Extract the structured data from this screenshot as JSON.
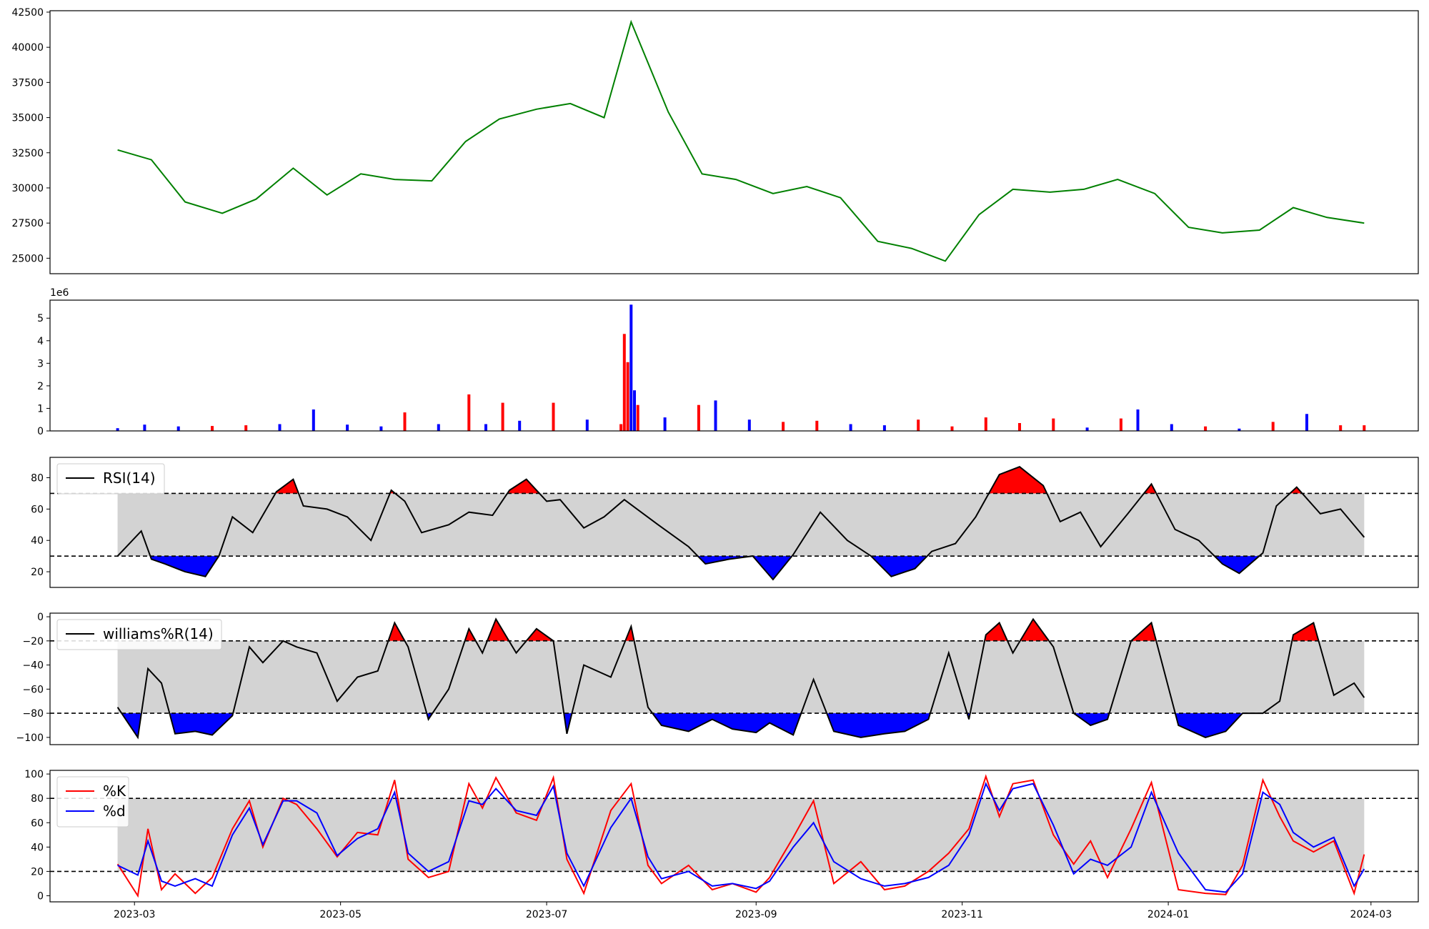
{
  "chart_data": [
    {
      "type": "line",
      "panel": "price",
      "ylim": [
        23900,
        42600
      ],
      "y_ticks": [
        25000,
        27500,
        30000,
        32500,
        35000,
        37500,
        40000,
        42500
      ],
      "y_tick_labels": [
        "25000",
        "27500",
        "30000",
        "32500",
        "35000",
        "37500",
        "40000",
        "42500"
      ],
      "line_color": "#008000",
      "x": [
        "2023-02-24",
        "2023-03-06",
        "2023-03-16",
        "2023-03-27",
        "2023-04-06",
        "2023-04-17",
        "2023-04-27",
        "2023-05-07",
        "2023-05-17",
        "2023-05-28",
        "2023-06-07",
        "2023-06-17",
        "2023-06-28",
        "2023-07-08",
        "2023-07-18",
        "2023-07-26",
        "2023-08-06",
        "2023-08-16",
        "2023-08-26",
        "2023-09-06",
        "2023-09-16",
        "2023-09-26",
        "2023-10-07",
        "2023-10-17",
        "2023-10-27",
        "2023-11-06",
        "2023-11-16",
        "2023-11-27",
        "2023-12-07",
        "2023-12-17",
        "2023-12-28",
        "2024-01-07",
        "2024-01-17",
        "2024-01-28",
        "2024-02-07",
        "2024-02-17",
        "2024-02-28"
      ],
      "values": [
        32700,
        32000,
        29000,
        28200,
        29200,
        31400,
        29500,
        31000,
        30600,
        30500,
        33300,
        34900,
        35600,
        36000,
        35000,
        41800,
        35400,
        31000,
        30600,
        29600,
        30100,
        29300,
        26200,
        25700,
        24800,
        28100,
        29900,
        29700,
        29900,
        30600,
        29600,
        27200,
        26800,
        27000,
        28600,
        27900,
        27500
      ]
    },
    {
      "type": "bar",
      "panel": "volume",
      "exponent_label": "1e6",
      "ylim": [
        0,
        5.8
      ],
      "y_ticks": [
        0,
        1,
        2,
        3,
        4,
        5
      ],
      "y_tick_labels": [
        "0",
        "1",
        "2",
        "3",
        "4",
        "5"
      ],
      "colors": {
        "up": "#ff0000",
        "down": "#0000ff",
        "flat": "#000000"
      },
      "x": [
        "2023-02-24",
        "2023-03-04",
        "2023-03-14",
        "2023-03-24",
        "2023-04-03",
        "2023-04-13",
        "2023-04-23",
        "2023-05-03",
        "2023-05-13",
        "2023-05-20",
        "2023-05-30",
        "2023-06-08",
        "2023-06-13",
        "2023-06-18",
        "2023-06-23",
        "2023-07-03",
        "2023-07-13",
        "2023-07-23",
        "2023-07-24",
        "2023-07-25",
        "2023-07-26",
        "2023-07-27",
        "2023-07-28",
        "2023-08-05",
        "2023-08-15",
        "2023-08-20",
        "2023-08-30",
        "2023-09-09",
        "2023-09-19",
        "2023-09-29",
        "2023-10-09",
        "2023-10-19",
        "2023-10-29",
        "2023-11-08",
        "2023-11-18",
        "2023-11-28",
        "2023-12-08",
        "2023-12-18",
        "2023-12-23",
        "2024-01-02",
        "2024-01-12",
        "2024-01-22",
        "2024-02-01",
        "2024-02-11",
        "2024-02-21",
        "2024-02-28"
      ],
      "values": [
        0.12,
        0.28,
        0.2,
        0.22,
        0.25,
        0.3,
        0.95,
        0.28,
        0.2,
        0.82,
        0.3,
        1.62,
        0.3,
        1.25,
        0.45,
        1.25,
        0.5,
        0.3,
        4.3,
        3.05,
        5.6,
        1.8,
        1.15,
        0.6,
        1.15,
        1.35,
        0.5,
        0.4,
        0.45,
        0.3,
        0.25,
        0.5,
        0.2,
        0.6,
        0.35,
        0.55,
        0.15,
        0.55,
        0.95,
        0.3,
        0.2,
        0.1,
        0.4,
        0.75,
        0.25,
        0.25
      ],
      "directions": [
        "down",
        "down",
        "down",
        "red",
        "up",
        "down",
        "down",
        "down",
        "down",
        "up",
        "down",
        "up",
        "down",
        "up",
        "down",
        "up",
        "down",
        "up",
        "up",
        "up",
        "down",
        "down",
        "up",
        "down",
        "up",
        "down",
        "down",
        "up",
        "up",
        "down",
        "down",
        "up",
        "up",
        "up",
        "up",
        "up",
        "down",
        "up",
        "down",
        "down",
        "up",
        "down",
        "up",
        "down",
        "up",
        "up"
      ]
    },
    {
      "type": "line",
      "panel": "rsi",
      "series": [
        {
          "name": "RSI(14)",
          "color": "#000000"
        }
      ],
      "ylim": [
        10,
        93
      ],
      "y_ticks": [
        20,
        40,
        60,
        80
      ],
      "y_tick_labels": [
        "20",
        "40",
        "60",
        "80"
      ],
      "bands": {
        "upper": 70,
        "lower": 30
      },
      "band_fill": "#d3d3d3",
      "overbought_fill": "#ff0000",
      "oversold_fill": "#0000ff",
      "x": [
        "2023-02-24",
        "2023-03-03",
        "2023-03-06",
        "2023-03-10",
        "2023-03-16",
        "2023-03-22",
        "2023-03-26",
        "2023-03-30",
        "2023-04-05",
        "2023-04-12",
        "2023-04-17",
        "2023-04-20",
        "2023-04-27",
        "2023-05-03",
        "2023-05-10",
        "2023-05-16",
        "2023-05-20",
        "2023-05-25",
        "2023-06-02",
        "2023-06-08",
        "2023-06-15",
        "2023-06-20",
        "2023-06-25",
        "2023-07-01",
        "2023-07-05",
        "2023-07-12",
        "2023-07-18",
        "2023-07-24",
        "2023-08-03",
        "2023-08-12",
        "2023-08-17",
        "2023-08-24",
        "2023-08-31",
        "2023-09-06",
        "2023-09-12",
        "2023-09-20",
        "2023-09-28",
        "2023-10-05",
        "2023-10-11",
        "2023-10-18",
        "2023-10-23",
        "2023-10-30",
        "2023-11-05",
        "2023-11-12",
        "2023-11-18",
        "2023-11-25",
        "2023-11-30",
        "2023-12-06",
        "2023-12-12",
        "2023-12-20",
        "2023-12-27",
        "2024-01-03",
        "2024-01-10",
        "2024-01-17",
        "2024-01-22",
        "2024-01-29",
        "2024-02-02",
        "2024-02-08",
        "2024-02-15",
        "2024-02-21",
        "2024-02-28"
      ],
      "values": [
        30,
        46,
        28,
        25,
        20,
        17,
        30,
        55,
        45,
        71,
        79,
        62,
        60,
        55,
        40,
        72,
        65,
        45,
        50,
        58,
        56,
        72,
        79,
        65,
        66,
        48,
        55,
        66,
        50,
        36,
        25,
        28,
        30,
        15,
        31,
        58,
        40,
        30,
        17,
        22,
        33,
        38,
        55,
        82,
        87,
        75,
        52,
        58,
        36,
        57,
        76,
        47,
        40,
        25,
        19,
        32,
        62,
        74,
        57,
        60,
        42
      ],
      "legend": "top-left"
    },
    {
      "type": "line",
      "panel": "williams",
      "series": [
        {
          "name": "williams%R(14)",
          "color": "#000000"
        }
      ],
      "ylim": [
        -106,
        3
      ],
      "y_ticks": [
        0,
        -20,
        -40,
        -60,
        -80,
        -100
      ],
      "y_tick_labels": [
        "0",
        "−20",
        "−40",
        "−60",
        "−80",
        "−100"
      ],
      "bands": {
        "upper": -20,
        "lower": -80
      },
      "band_fill": "#d3d3d3",
      "overbought_fill": "#ff0000",
      "oversold_fill": "#0000ff",
      "x": [
        "2023-02-24",
        "2023-03-02",
        "2023-03-05",
        "2023-03-09",
        "2023-03-13",
        "2023-03-19",
        "2023-03-24",
        "2023-03-30",
        "2023-04-04",
        "2023-04-08",
        "2023-04-14",
        "2023-04-18",
        "2023-04-24",
        "2023-04-30",
        "2023-05-06",
        "2023-05-12",
        "2023-05-17",
        "2023-05-21",
        "2023-05-27",
        "2023-06-02",
        "2023-06-08",
        "2023-06-12",
        "2023-06-16",
        "2023-06-22",
        "2023-06-28",
        "2023-07-03",
        "2023-07-07",
        "2023-07-12",
        "2023-07-20",
        "2023-07-26",
        "2023-07-31",
        "2023-08-04",
        "2023-08-12",
        "2023-08-19",
        "2023-08-25",
        "2023-09-01",
        "2023-09-05",
        "2023-09-12",
        "2023-09-18",
        "2023-09-24",
        "2023-10-02",
        "2023-10-09",
        "2023-10-15",
        "2023-10-22",
        "2023-10-28",
        "2023-11-03",
        "2023-11-08",
        "2023-11-12",
        "2023-11-16",
        "2023-11-22",
        "2023-11-28",
        "2023-12-04",
        "2023-12-09",
        "2023-12-14",
        "2023-12-21",
        "2023-12-27",
        "2024-01-04",
        "2024-01-12",
        "2024-01-18",
        "2024-01-23",
        "2024-01-29",
        "2024-02-03",
        "2024-02-07",
        "2024-02-13",
        "2024-02-19",
        "2024-02-25",
        "2024-02-28"
      ],
      "values": [
        -75,
        -100,
        -43,
        -55,
        -97,
        -95,
        -98,
        -82,
        -25,
        -38,
        -20,
        -25,
        -30,
        -70,
        -50,
        -45,
        -5,
        -25,
        -85,
        -60,
        -10,
        -30,
        -2,
        -30,
        -10,
        -20,
        -97,
        -40,
        -50,
        -8,
        -75,
        -90,
        -95,
        -85,
        -93,
        -96,
        -88,
        -98,
        -52,
        -95,
        -100,
        -97,
        -95,
        -85,
        -30,
        -85,
        -15,
        -5,
        -30,
        -2,
        -25,
        -80,
        -90,
        -85,
        -20,
        -5,
        -90,
        -100,
        -95,
        -80,
        -80,
        -70,
        -15,
        -5,
        -65,
        -55,
        -67
      ],
      "legend": "top-left"
    },
    {
      "type": "line",
      "panel": "stochastic",
      "series": [
        {
          "name": "%K",
          "color": "#ff0000",
          "values": [
            26,
            0,
            55,
            5,
            18,
            2,
            15,
            55,
            78,
            40,
            80,
            75,
            55,
            32,
            52,
            50,
            95,
            30,
            15,
            20,
            92,
            72,
            97,
            68,
            62,
            97,
            30,
            2,
            70,
            92,
            25,
            10,
            25,
            5,
            10,
            3,
            15,
            48,
            78,
            10,
            28,
            5,
            8,
            20,
            35,
            55,
            98,
            65,
            92,
            95,
            50,
            26,
            45,
            15,
            55,
            93,
            5,
            2,
            1,
            25,
            95,
            65,
            45,
            36,
            45,
            2,
            34
          ]
        },
        {
          "name": "%d",
          "color": "#0000ff",
          "values": [
            25,
            17,
            45,
            12,
            8,
            14,
            8,
            50,
            72,
            42,
            78,
            78,
            68,
            33,
            47,
            55,
            85,
            35,
            20,
            28,
            78,
            75,
            88,
            70,
            66,
            90,
            35,
            8,
            56,
            80,
            32,
            14,
            20,
            8,
            10,
            6,
            12,
            40,
            60,
            28,
            14,
            8,
            10,
            15,
            25,
            50,
            92,
            70,
            88,
            92,
            58,
            18,
            30,
            25,
            40,
            85,
            35,
            5,
            3,
            18,
            85,
            75,
            52,
            40,
            48,
            8,
            22
          ]
        }
      ],
      "x": [
        "2023-02-24",
        "2023-03-02",
        "2023-03-05",
        "2023-03-09",
        "2023-03-13",
        "2023-03-19",
        "2023-03-24",
        "2023-03-30",
        "2023-04-04",
        "2023-04-08",
        "2023-04-14",
        "2023-04-18",
        "2023-04-24",
        "2023-04-30",
        "2023-05-06",
        "2023-05-12",
        "2023-05-17",
        "2023-05-21",
        "2023-05-27",
        "2023-06-02",
        "2023-06-08",
        "2023-06-12",
        "2023-06-16",
        "2023-06-22",
        "2023-06-28",
        "2023-07-03",
        "2023-07-07",
        "2023-07-12",
        "2023-07-20",
        "2023-07-26",
        "2023-07-31",
        "2023-08-04",
        "2023-08-12",
        "2023-08-19",
        "2023-08-25",
        "2023-09-01",
        "2023-09-05",
        "2023-09-12",
        "2023-09-18",
        "2023-09-24",
        "2023-10-02",
        "2023-10-09",
        "2023-10-15",
        "2023-10-22",
        "2023-10-28",
        "2023-11-03",
        "2023-11-08",
        "2023-11-12",
        "2023-11-16",
        "2023-11-22",
        "2023-11-28",
        "2023-12-04",
        "2023-12-09",
        "2023-12-14",
        "2023-12-21",
        "2023-12-27",
        "2024-01-04",
        "2024-01-12",
        "2024-01-18",
        "2024-01-23",
        "2024-01-29",
        "2024-02-03",
        "2024-02-07",
        "2024-02-13",
        "2024-02-19",
        "2024-02-25",
        "2024-02-28"
      ],
      "ylim": [
        -5,
        103
      ],
      "y_ticks": [
        0,
        20,
        40,
        60,
        80,
        100
      ],
      "y_tick_labels": [
        "0",
        "20",
        "40",
        "60",
        "80",
        "100"
      ],
      "bands": {
        "upper": 80,
        "lower": 20
      },
      "band_fill": "#d3d3d3",
      "legend": "top-left"
    }
  ],
  "x_axis": {
    "range": [
      "2023-02-04",
      "2024-03-15"
    ],
    "ticks": [
      "2023-03-01",
      "2023-05-01",
      "2023-07-01",
      "2023-09-01",
      "2023-11-01",
      "2024-01-01",
      "2024-03-01"
    ],
    "tick_labels": [
      "2023-03",
      "2023-05",
      "2023-07",
      "2023-09",
      "2023-11",
      "2024-01",
      "2024-03"
    ]
  }
}
